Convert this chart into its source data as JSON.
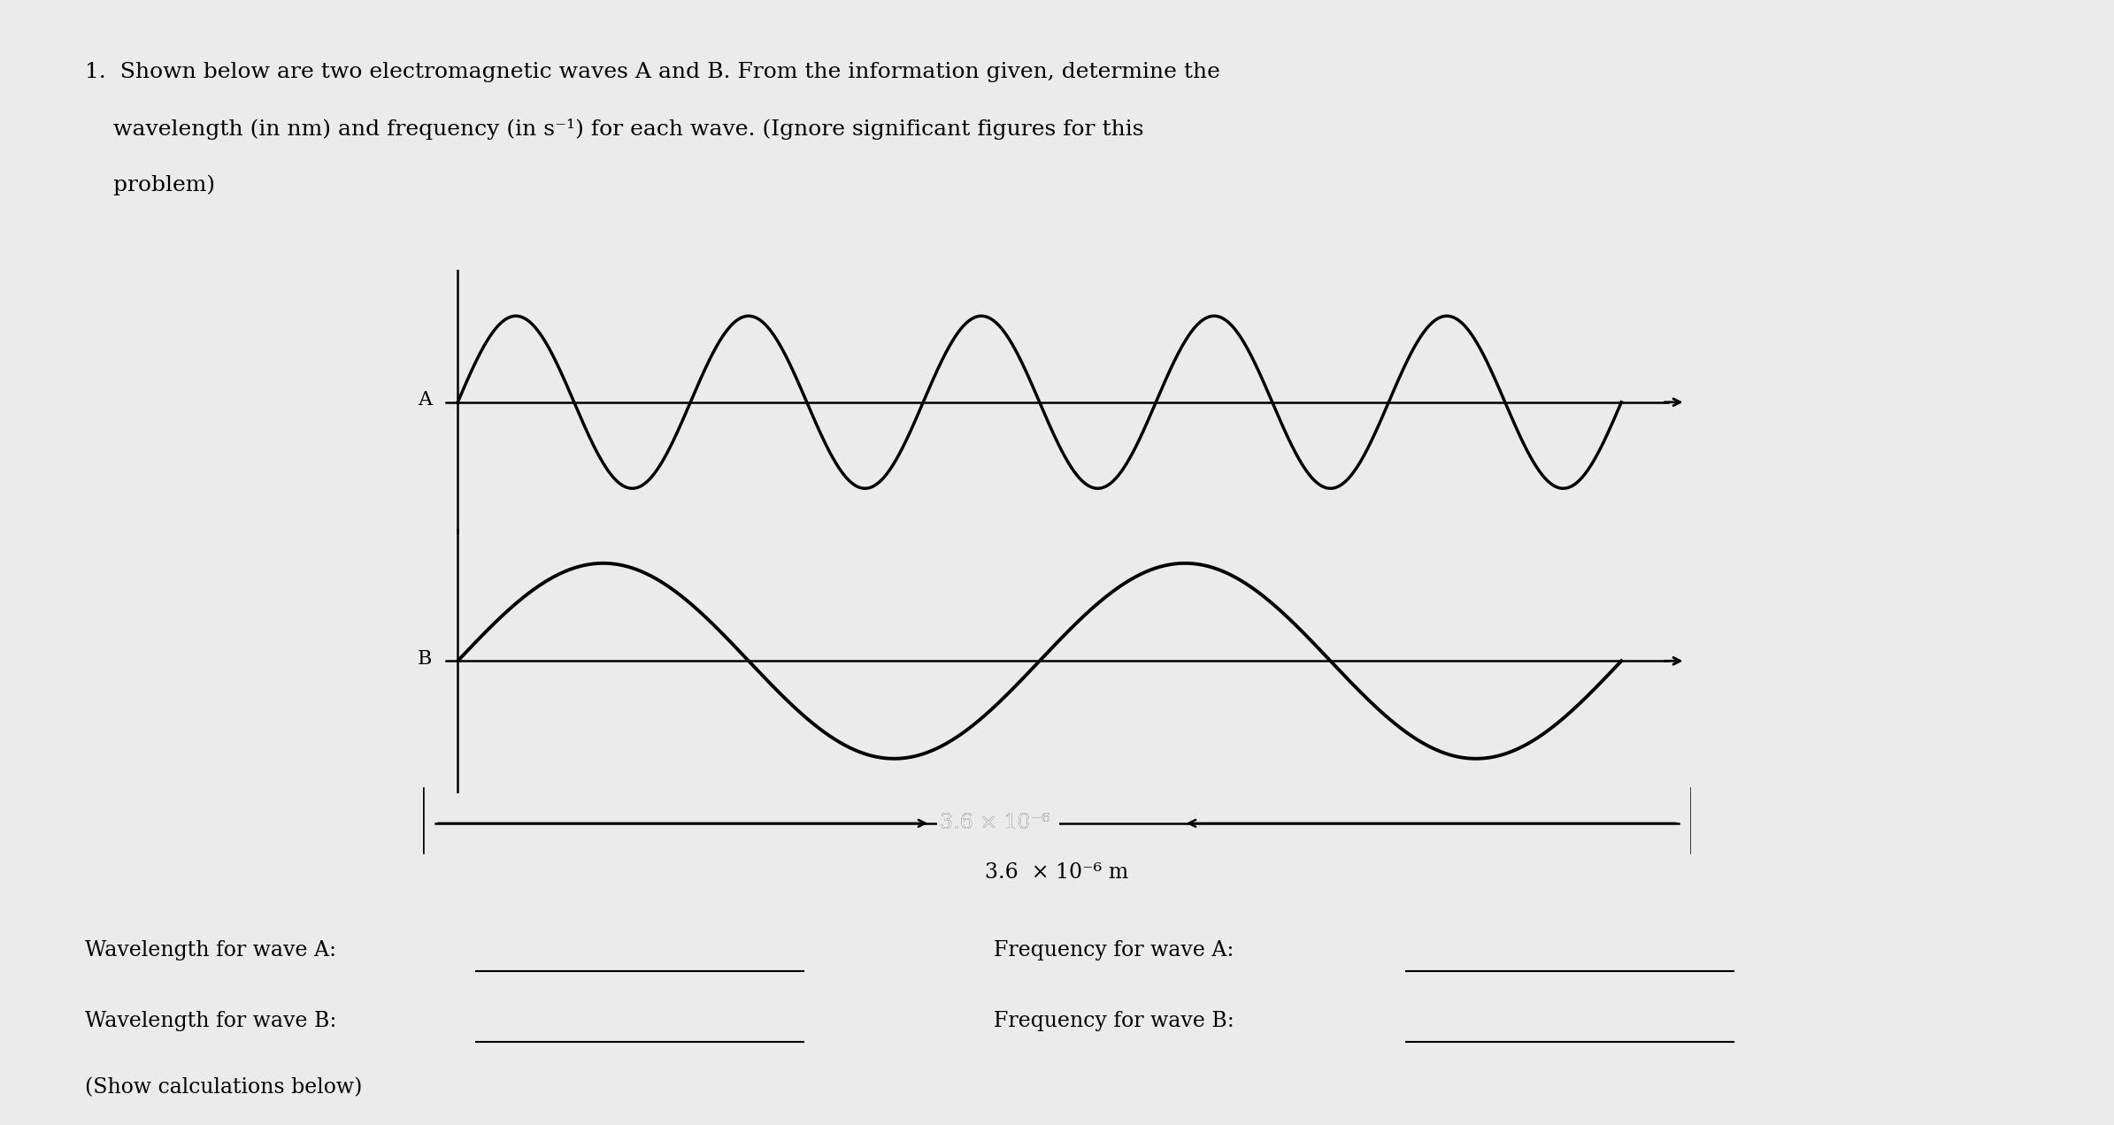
{
  "bg_color": "#ebebeb",
  "wave_color": "#000000",
  "wave_A_cycles": 5,
  "wave_B_cycles": 2,
  "wave_A_amplitude": 0.75,
  "wave_B_amplitude": 0.85,
  "label_A": "A",
  "label_B": "B",
  "dim_label": "3.6 × 10",
  "dim_exp": "−6",
  "dim_suffix": " m",
  "title_line1": "1.  Shown below are two electromagnetic waves A and B. From the information given, determine the",
  "title_line2": "    wavelength (in nm) and frequency (in s⁻¹) for each wave. (Ignore significant figures for this",
  "title_line3": "    problem)",
  "wl_A": "Wavelength for wave A:",
  "freq_A": "Frequency for wave A:",
  "wl_B": "Wavelength for wave B:",
  "freq_B": "Frequency for wave B:",
  "show_calc": "(Show calculations below)",
  "font_size_title": 18,
  "font_size_wave_label": 16,
  "font_size_bottom": 17
}
